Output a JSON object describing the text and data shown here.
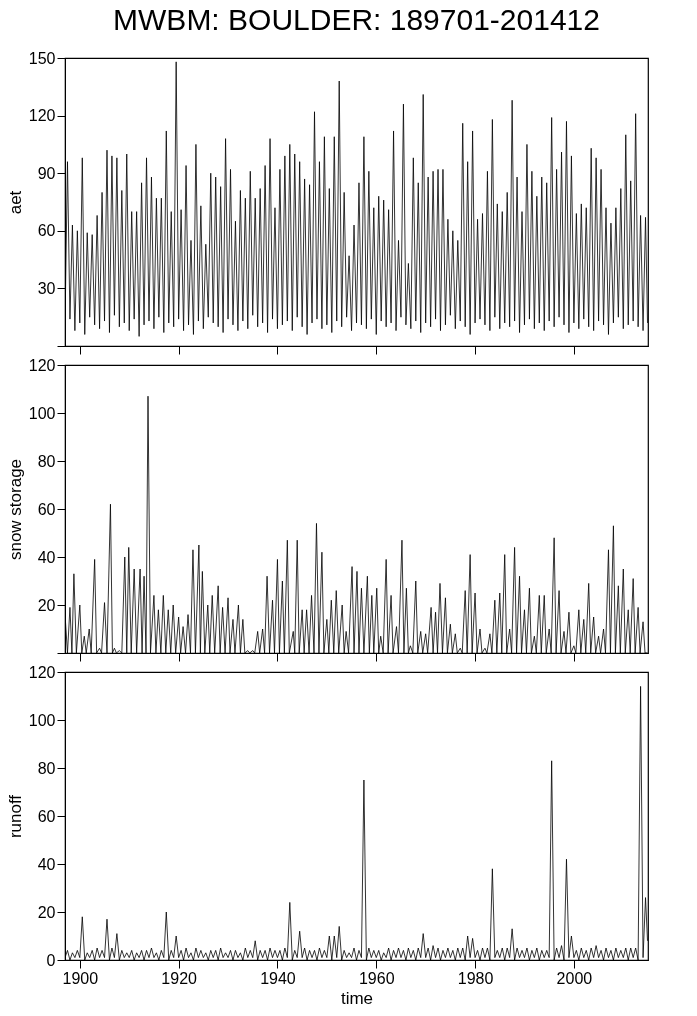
{
  "chart_data": [
    {
      "type": "line",
      "title": "MWBM: BOULDER: 189701-201412",
      "ylabel": "aet",
      "tick_labels": "y",
      "xlim": [
        1897,
        2015
      ],
      "xticks": [
        1900,
        1920,
        1940,
        1960,
        1980,
        2000
      ],
      "ylim": [
        0,
        150
      ],
      "yticks": [
        {
          "value": 0,
          "label": null
        },
        30,
        60,
        90,
        120,
        150
      ],
      "x": [
        1897,
        1897.5,
        1898,
        1898.5,
        1899,
        1899.5,
        1900,
        1900.5,
        1901,
        1901.5,
        1902,
        1902.5,
        1903,
        1903.5,
        1904,
        1904.5,
        1905,
        1905.5,
        1906,
        1906.5,
        1907,
        1907.5,
        1908,
        1908.5,
        1909,
        1909.5,
        1910,
        1910.5,
        1911,
        1911.5,
        1912,
        1912.5,
        1913,
        1913.5,
        1914,
        1914.5,
        1915,
        1915.5,
        1916,
        1916.5,
        1917,
        1917.5,
        1918,
        1918.5,
        1919,
        1919.5,
        1920,
        1920.5,
        1921,
        1921.5,
        1922,
        1922.5,
        1923,
        1923.5,
        1924,
        1924.5,
        1925,
        1925.5,
        1926,
        1926.5,
        1927,
        1927.5,
        1928,
        1928.5,
        1929,
        1929.5,
        1930,
        1930.5,
        1931,
        1931.5,
        1932,
        1932.5,
        1933,
        1933.5,
        1934,
        1934.5,
        1935,
        1935.5,
        1936,
        1936.5,
        1937,
        1937.5,
        1938,
        1938.5,
        1939,
        1939.5,
        1940,
        1940.5,
        1941,
        1941.5,
        1942,
        1942.5,
        1943,
        1943.5,
        1944,
        1944.5,
        1945,
        1945.5,
        1946,
        1946.5,
        1947,
        1947.5,
        1948,
        1948.5,
        1949,
        1949.5,
        1950,
        1950.5,
        1951,
        1951.5,
        1952,
        1952.5,
        1953,
        1953.5,
        1954,
        1954.5,
        1955,
        1955.5,
        1956,
        1956.5,
        1957,
        1957.5,
        1958,
        1958.5,
        1959,
        1959.5,
        1960,
        1960.5,
        1961,
        1961.5,
        1962,
        1962.5,
        1963,
        1963.5,
        1964,
        1964.5,
        1965,
        1965.5,
        1966,
        1966.5,
        1967,
        1967.5,
        1968,
        1968.5,
        1969,
        1969.5,
        1970,
        1970.5,
        1971,
        1971.5,
        1972,
        1972.5,
        1973,
        1973.5,
        1974,
        1974.5,
        1975,
        1975.5,
        1976,
        1976.5,
        1977,
        1977.5,
        1978,
        1978.5,
        1979,
        1979.5,
        1980,
        1980.5,
        1981,
        1981.5,
        1982,
        1982.5,
        1983,
        1983.5,
        1984,
        1984.5,
        1985,
        1985.5,
        1986,
        1986.5,
        1987,
        1987.5,
        1988,
        1988.5,
        1989,
        1989.5,
        1990,
        1990.5,
        1991,
        1991.5,
        1992,
        1992.5,
        1993,
        1993.5,
        1994,
        1994.5,
        1995,
        1995.5,
        1996,
        1996.5,
        1997,
        1997.5,
        1998,
        1998.5,
        1999,
        1999.5,
        2000,
        2000.5,
        2001,
        2001.5,
        2002,
        2002.5,
        2003,
        2003.5,
        2004,
        2004.5,
        2005,
        2005.5,
        2006,
        2006.5,
        2007,
        2007.5,
        2008,
        2008.5,
        2009,
        2009.5,
        2010,
        2010.5,
        2011,
        2011.5,
        2012,
        2012.5,
        2013,
        2013.5,
        2014,
        2014.5,
        2014.9
      ],
      "series": [
        {
          "color": "#000000",
          "values": [
            10,
            96,
            14,
            63,
            8,
            60,
            12,
            98,
            6,
            59,
            15,
            58,
            11,
            68,
            9,
            80,
            13,
            102,
            7,
            99,
            16,
            98,
            10,
            81,
            12,
            100,
            8,
            70,
            14,
            70,
            5,
            85,
            11,
            98,
            13,
            88,
            9,
            77,
            15,
            77,
            7,
            112,
            12,
            70,
            10,
            148,
            14,
            71,
            8,
            94,
            11,
            55,
            6,
            105,
            13,
            73,
            9,
            53,
            15,
            90,
            12,
            88,
            10,
            83,
            7,
            108,
            14,
            92,
            11,
            65,
            8,
            81,
            13,
            77,
            9,
            91,
            16,
            77,
            10,
            82,
            12,
            94,
            7,
            108,
            14,
            72,
            9,
            92,
            11,
            99,
            13,
            105,
            8,
            100,
            15,
            96,
            10,
            87,
            6,
            84,
            12,
            122,
            14,
            96,
            9,
            109,
            11,
            82,
            7,
            109,
            13,
            138,
            10,
            80,
            15,
            47,
            8,
            63,
            12,
            85,
            11,
            109,
            9,
            91,
            14,
            72,
            6,
            78,
            13,
            76,
            10,
            71,
            12,
            112,
            8,
            55,
            15,
            126,
            11,
            43,
            9,
            98,
            13,
            85,
            7,
            131,
            12,
            88,
            10,
            91,
            14,
            92,
            8,
            92,
            11,
            66,
            16,
            60,
            9,
            55,
            13,
            116,
            10,
            96,
            6,
            112,
            12,
            66,
            14,
            69,
            11,
            91,
            8,
            118,
            15,
            74,
            9,
            70,
            12,
            80,
            10,
            128,
            13,
            88,
            7,
            70,
            11,
            105,
            14,
            91,
            9,
            78,
            12,
            88,
            8,
            85,
            13,
            119,
            10,
            92,
            15,
            101,
            11,
            117,
            7,
            99,
            12,
            69,
            9,
            74,
            14,
            72,
            10,
            103,
            8,
            98,
            13,
            92,
            11,
            72,
            6,
            64,
            12,
            72,
            15,
            82,
            9,
            110,
            11,
            86,
            13,
            121,
            10,
            68,
            8,
            67,
            12
          ]
        }
      ]
    },
    {
      "type": "line",
      "ylabel": "snow storage",
      "tick_labels": "y",
      "xlim": [
        1897,
        2015
      ],
      "xticks": [
        1900,
        1920,
        1940,
        1960,
        1980,
        2000
      ],
      "ylim": [
        0,
        120
      ],
      "yticks": [
        {
          "value": 0,
          "label": null
        },
        20,
        40,
        60,
        80,
        100,
        120
      ],
      "x": [
        1897.1,
        1897.5,
        1898,
        1898.4,
        1898.8,
        1899.3,
        1900,
        1900.4,
        1900.9,
        1901.3,
        1901.9,
        1902.3,
        1903,
        1903.4,
        1904,
        1904.4,
        1905,
        1905.5,
        1906.2,
        1906.6,
        1907,
        1907.4,
        1908,
        1908.5,
        1909.1,
        1909.5,
        1909.9,
        1910.4,
        1911,
        1911.5,
        1912.2,
        1912.6,
        1913,
        1913.4,
        1913.8,
        1914.3,
        1915,
        1915.4,
        1915.9,
        1916.4,
        1916.9,
        1917.4,
        1917.9,
        1918.4,
        1918.9,
        1919.4,
        1920,
        1920.4,
        1920.9,
        1921.4,
        1921.9,
        1922.4,
        1922.9,
        1923.4,
        1924.1,
        1924.4,
        1924.8,
        1925.3,
        1925.9,
        1926.3,
        1926.8,
        1927.3,
        1928,
        1928.4,
        1928.9,
        1929.4,
        1930,
        1930.4,
        1931,
        1931.4,
        1932.1,
        1932.5,
        1933,
        1933.4,
        1934,
        1934.4,
        1935,
        1935.4,
        1936,
        1936.4,
        1937,
        1937.4,
        1937.9,
        1938.4,
        1939,
        1939.4,
        1940,
        1940.4,
        1941,
        1941.4,
        1942,
        1942.4,
        1943.2,
        1943.5,
        1944,
        1944.4,
        1945,
        1945.4,
        1945.9,
        1946.4,
        1946.9,
        1947.4,
        1947.9,
        1948.4,
        1949,
        1949.4,
        1950,
        1950.4,
        1950.9,
        1951.4,
        1951.9,
        1952.4,
        1953.1,
        1953.5,
        1953.9,
        1954.4,
        1955.1,
        1955.5,
        1956.1,
        1956.5,
        1957,
        1957.5,
        1958.2,
        1958.6,
        1959.1,
        1959.5,
        1960.1,
        1960.5,
        1960.9,
        1961.4,
        1962,
        1962.4,
        1963,
        1963.4,
        1964.1,
        1964.5,
        1965.2,
        1965.6,
        1966.1,
        1966.5,
        1966.9,
        1967.4,
        1968,
        1968.4,
        1969,
        1969.4,
        1970,
        1970.4,
        1971.1,
        1971.5,
        1972,
        1972.4,
        1972.9,
        1973.4,
        1974,
        1974.4,
        1975,
        1975.4,
        1976,
        1976.4,
        1977,
        1977.4,
        1978,
        1978.4,
        1979,
        1979.4,
        1980,
        1980.4,
        1981,
        1981.4,
        1982,
        1982.4,
        1983,
        1983.4,
        1984,
        1984.4,
        1985,
        1985.4,
        1986,
        1986.4,
        1987,
        1987.4,
        1988,
        1988.4,
        1989,
        1989.4,
        1990,
        1990.4,
        1991,
        1991.4,
        1992,
        1992.4,
        1993,
        1993.4,
        1994,
        1994.4,
        1995,
        1995.4,
        1996,
        1996.4,
        1997,
        1997.4,
        1998,
        1998.4,
        1999,
        1999.4,
        2000,
        2000.4,
        2001,
        2001.4,
        2002,
        2002.4,
        2003,
        2003.4,
        2004,
        2004.4,
        2005,
        2005.4,
        2006,
        2006.4,
        2007,
        2007.4,
        2008,
        2008.4,
        2009,
        2009.4,
        2010,
        2010.4,
        2011,
        2011.4,
        2012,
        2012.4,
        2013,
        2013.4,
        2014,
        2014.4,
        2014.9
      ],
      "series": [
        {
          "color": "#000000",
          "values": [
            13,
            0,
            19,
            0,
            33,
            0,
            20,
            0,
            7,
            0,
            10,
            0,
            39,
            0,
            2,
            0,
            21,
            0,
            62,
            0,
            2,
            0,
            1,
            0,
            40,
            0,
            44,
            0,
            35,
            0,
            35,
            0,
            32,
            0,
            107,
            0,
            24,
            0,
            18,
            0,
            24,
            0,
            18,
            0,
            20,
            0,
            15,
            0,
            11,
            0,
            16,
            0,
            43,
            0,
            45,
            0,
            34,
            0,
            20,
            0,
            24,
            0,
            28,
            0,
            19,
            0,
            23,
            0,
            14,
            0,
            20,
            0,
            14,
            0,
            1,
            0,
            1,
            0,
            9,
            0,
            10,
            0,
            32,
            0,
            22,
            0,
            39,
            0,
            30,
            0,
            47,
            0,
            9,
            0,
            47,
            0,
            18,
            0,
            18,
            0,
            24,
            0,
            54,
            0,
            42,
            0,
            14,
            0,
            22,
            0,
            26,
            0,
            20,
            0,
            9,
            0,
            36,
            0,
            34,
            0,
            27,
            0,
            32,
            0,
            24,
            0,
            27,
            0,
            7,
            0,
            39,
            0,
            24,
            0,
            11,
            0,
            47,
            0,
            27,
            0,
            3,
            0,
            30,
            0,
            9,
            0,
            8,
            0,
            19,
            0,
            17,
            0,
            29,
            0,
            23,
            0,
            12,
            0,
            8,
            0,
            2,
            0,
            26,
            0,
            41,
            0,
            25,
            0,
            10,
            0,
            2,
            0,
            8,
            0,
            22,
            0,
            25,
            0,
            41,
            0,
            10,
            0,
            44,
            0,
            32,
            0,
            18,
            0,
            27,
            0,
            7,
            0,
            24,
            0,
            24,
            0,
            10,
            0,
            48,
            0,
            26,
            0,
            9,
            0,
            17,
            0,
            3,
            0,
            18,
            0,
            14,
            0,
            29,
            0,
            15,
            0,
            7,
            0,
            10,
            0,
            43,
            0,
            53,
            0,
            28,
            0,
            35,
            0,
            18,
            0,
            31,
            0,
            19,
            0,
            13,
            0,
            0
          ]
        }
      ]
    },
    {
      "type": "line",
      "ylabel": "runoff",
      "xlabel": "time",
      "xlim": [
        1897,
        2015
      ],
      "xticks": [
        1900,
        1920,
        1940,
        1960,
        1980,
        2000
      ],
      "ylim": [
        0,
        120
      ],
      "yticks": [
        0,
        20,
        40,
        60,
        80,
        100,
        120
      ],
      "x": [
        1897,
        1897.5,
        1898,
        1898.5,
        1899,
        1899.5,
        1900,
        1900.5,
        1901,
        1901.5,
        1902,
        1902.5,
        1903,
        1903.5,
        1904,
        1904.5,
        1905,
        1905.5,
        1906,
        1906.5,
        1907,
        1907.5,
        1908,
        1908.5,
        1909,
        1909.5,
        1910,
        1910.5,
        1911,
        1911.5,
        1912,
        1912.5,
        1913,
        1913.5,
        1914,
        1914.5,
        1915,
        1915.5,
        1916,
        1916.5,
        1917,
        1917.5,
        1918,
        1918.5,
        1919,
        1919.5,
        1920,
        1920.5,
        1921,
        1921.5,
        1922,
        1922.5,
        1923,
        1923.5,
        1924,
        1924.5,
        1925,
        1925.5,
        1926,
        1926.5,
        1927,
        1927.5,
        1928,
        1928.5,
        1929,
        1929.5,
        1930,
        1930.5,
        1931,
        1931.5,
        1932,
        1932.5,
        1933,
        1933.5,
        1934,
        1934.5,
        1935,
        1935.5,
        1936,
        1936.5,
        1937,
        1937.5,
        1938,
        1938.5,
        1939,
        1939.5,
        1940,
        1940.5,
        1941,
        1941.5,
        1942,
        1942.5,
        1943,
        1943.5,
        1944,
        1944.5,
        1945,
        1945.5,
        1946,
        1946.5,
        1947,
        1947.5,
        1948,
        1948.5,
        1949,
        1949.5,
        1950,
        1950.5,
        1951,
        1951.5,
        1952,
        1952.5,
        1953,
        1953.5,
        1954,
        1954.5,
        1955,
        1955.5,
        1956,
        1956.5,
        1957,
        1957.5,
        1958,
        1958.5,
        1959,
        1959.5,
        1960,
        1960.5,
        1961,
        1961.5,
        1962,
        1962.5,
        1963,
        1963.5,
        1964,
        1964.5,
        1965,
        1965.5,
        1966,
        1966.5,
        1967,
        1967.5,
        1968,
        1968.5,
        1969,
        1969.5,
        1970,
        1970.5,
        1971,
        1971.5,
        1972,
        1972.5,
        1973,
        1973.5,
        1974,
        1974.5,
        1975,
        1975.5,
        1976,
        1976.5,
        1977,
        1977.5,
        1978,
        1978.5,
        1979,
        1979.5,
        1980,
        1980.5,
        1981,
        1981.5,
        1982,
        1982.5,
        1983,
        1983.5,
        1984,
        1984.5,
        1985,
        1985.5,
        1986,
        1986.5,
        1987,
        1987.5,
        1988,
        1988.5,
        1989,
        1989.5,
        1990,
        1990.5,
        1991,
        1991.5,
        1992,
        1992.5,
        1993,
        1993.5,
        1994,
        1994.5,
        1995,
        1995.5,
        1996,
        1996.5,
        1997,
        1997.5,
        1998,
        1998.5,
        1999,
        1999.5,
        2000,
        2000.5,
        2001,
        2001.5,
        2002,
        2002.5,
        2003,
        2003.5,
        2004,
        2004.5,
        2005,
        2005.5,
        2006,
        2006.5,
        2007,
        2007.5,
        2008,
        2008.5,
        2009,
        2009.5,
        2010,
        2010.5,
        2011,
        2011.5,
        2012,
        2012.5,
        2013,
        2013.5,
        2014,
        2014.5,
        2014.9
      ],
      "series": [
        {
          "color": "#000000",
          "values": [
            1,
            4,
            0,
            3,
            1,
            4,
            1,
            18,
            0,
            3,
            1,
            4,
            0,
            5,
            1,
            4,
            1,
            17,
            0,
            5,
            1,
            11,
            0,
            4,
            1,
            3,
            1,
            4,
            0,
            3,
            1,
            4,
            0,
            4,
            1,
            5,
            1,
            3,
            0,
            4,
            1,
            20,
            0,
            4,
            1,
            10,
            1,
            4,
            0,
            5,
            1,
            3,
            0,
            5,
            1,
            4,
            1,
            3,
            0,
            4,
            1,
            4,
            0,
            5,
            1,
            3,
            1,
            4,
            0,
            4,
            1,
            3,
            0,
            5,
            1,
            4,
            1,
            8,
            0,
            4,
            1,
            4,
            0,
            5,
            1,
            4,
            1,
            4,
            0,
            5,
            1,
            24,
            0,
            4,
            1,
            12,
            1,
            5,
            0,
            4,
            1,
            4,
            0,
            5,
            1,
            4,
            1,
            10,
            0,
            10,
            1,
            14,
            0,
            4,
            1,
            3,
            1,
            5,
            0,
            4,
            1,
            75,
            0,
            5,
            1,
            4,
            1,
            4,
            0,
            3,
            1,
            5,
            0,
            4,
            1,
            5,
            1,
            4,
            0,
            5,
            1,
            4,
            0,
            5,
            1,
            11,
            1,
            5,
            0,
            6,
            1,
            5,
            0,
            4,
            1,
            5,
            1,
            4,
            0,
            5,
            1,
            5,
            0,
            10,
            1,
            9,
            1,
            4,
            0,
            5,
            1,
            5,
            0,
            38,
            1,
            4,
            1,
            5,
            0,
            5,
            1,
            13,
            0,
            5,
            1,
            4,
            1,
            5,
            0,
            4,
            1,
            5,
            0,
            4,
            1,
            4,
            1,
            83,
            0,
            5,
            1,
            6,
            0,
            42,
            1,
            10,
            1,
            4,
            0,
            5,
            1,
            4,
            0,
            5,
            1,
            6,
            1,
            4,
            0,
            5,
            1,
            4,
            0,
            5,
            1,
            4,
            1,
            5,
            0,
            5,
            1,
            5,
            0,
            114,
            1,
            26,
            8
          ]
        }
      ]
    }
  ]
}
